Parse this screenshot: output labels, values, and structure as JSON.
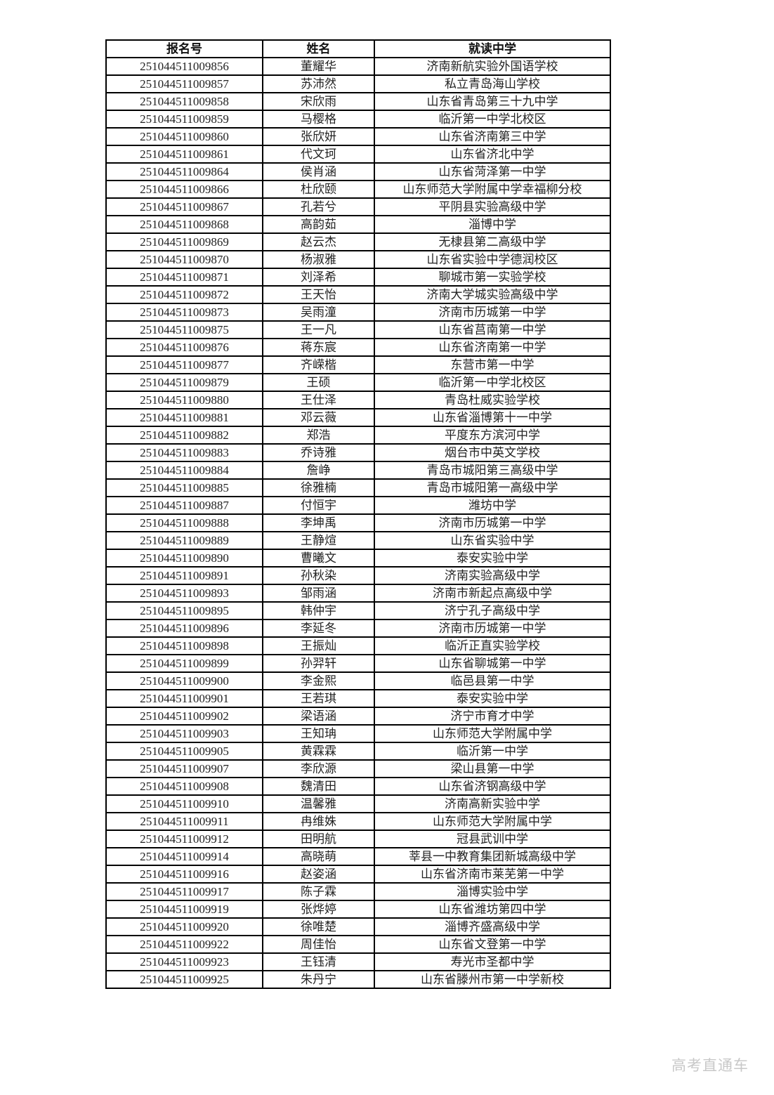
{
  "watermark": {
    "text": "高考直通车",
    "color": "#c8c8c8"
  },
  "table": {
    "columns": [
      "报名号",
      "姓名",
      "就读中学"
    ],
    "cell_names": [
      "reg-no-cell",
      "name-cell",
      "school-cell"
    ],
    "rows": [
      [
        "251044511009856",
        "董耀华",
        "济南新航实验外国语学校"
      ],
      [
        "251044511009857",
        "苏沛然",
        "私立青岛海山学校"
      ],
      [
        "251044511009858",
        "宋欣雨",
        "山东省青岛第三十九中学"
      ],
      [
        "251044511009859",
        "马樱格",
        "临沂第一中学北校区"
      ],
      [
        "251044511009860",
        "张欣妍",
        "山东省济南第三中学"
      ],
      [
        "251044511009861",
        "代文珂",
        "山东省济北中学"
      ],
      [
        "251044511009864",
        "侯肖涵",
        "山东省菏泽第一中学"
      ],
      [
        "251044511009866",
        "杜欣颐",
        "山东师范大学附属中学幸福柳分校"
      ],
      [
        "251044511009867",
        "孔若兮",
        "平阴县实验高级中学"
      ],
      [
        "251044511009868",
        "高韵茹",
        "淄博中学"
      ],
      [
        "251044511009869",
        "赵云杰",
        "无棣县第二高级中学"
      ],
      [
        "251044511009870",
        "杨淑雅",
        "山东省实验中学德润校区"
      ],
      [
        "251044511009871",
        "刘泽希",
        "聊城市第一实验学校"
      ],
      [
        "251044511009872",
        "王天怡",
        "济南大学城实验高级中学"
      ],
      [
        "251044511009873",
        "吴雨潼",
        "济南市历城第一中学"
      ],
      [
        "251044511009875",
        "王一凡",
        "山东省莒南第一中学"
      ],
      [
        "251044511009876",
        "蒋东宸",
        "山东省济南第一中学"
      ],
      [
        "251044511009877",
        "齐嵘楷",
        "东营市第一中学"
      ],
      [
        "251044511009879",
        "王硕",
        "临沂第一中学北校区"
      ],
      [
        "251044511009880",
        "王仕泽",
        "青岛杜威实验学校"
      ],
      [
        "251044511009881",
        "邓云薇",
        "山东省淄博第十一中学"
      ],
      [
        "251044511009882",
        "郑浩",
        "平度东方滨河中学"
      ],
      [
        "251044511009883",
        "乔诗雅",
        "烟台市中英文学校"
      ],
      [
        "251044511009884",
        "詹峥",
        "青岛市城阳第三高级中学"
      ],
      [
        "251044511009885",
        "徐雅楠",
        "青岛市城阳第一高级中学"
      ],
      [
        "251044511009887",
        "付恒宇",
        "潍坊中学"
      ],
      [
        "251044511009888",
        "李坤禹",
        "济南市历城第一中学"
      ],
      [
        "251044511009889",
        "王静煊",
        "山东省实验中学"
      ],
      [
        "251044511009890",
        "曹曦文",
        "泰安实验中学"
      ],
      [
        "251044511009891",
        "孙秋染",
        "济南实验高级中学"
      ],
      [
        "251044511009893",
        "邹雨涵",
        "济南市新起点高级中学"
      ],
      [
        "251044511009895",
        "韩仲宇",
        "济宁孔子高级中学"
      ],
      [
        "251044511009896",
        "李延冬",
        "济南市历城第一中学"
      ],
      [
        "251044511009898",
        "王振灿",
        "临沂正直实验学校"
      ],
      [
        "251044511009899",
        "孙羿轩",
        "山东省聊城第一中学"
      ],
      [
        "251044511009900",
        "李金熙",
        "临邑县第一中学"
      ],
      [
        "251044511009901",
        "王若琪",
        "泰安实验中学"
      ],
      [
        "251044511009902",
        "梁语涵",
        "济宁市育才中学"
      ],
      [
        "251044511009903",
        "王知珃",
        "山东师范大学附属中学"
      ],
      [
        "251044511009905",
        "黄霖霖",
        "临沂第一中学"
      ],
      [
        "251044511009907",
        "李欣源",
        "梁山县第一中学"
      ],
      [
        "251044511009908",
        "魏清田",
        "山东省济钢高级中学"
      ],
      [
        "251044511009910",
        "温馨雅",
        "济南高新实验中学"
      ],
      [
        "251044511009911",
        "冉维姝",
        "山东师范大学附属中学"
      ],
      [
        "251044511009912",
        "田明航",
        "冠县武训中学"
      ],
      [
        "251044511009914",
        "高晓萌",
        "莘县一中教育集团新城高级中学"
      ],
      [
        "251044511009916",
        "赵姿涵",
        "山东省济南市莱芜第一中学"
      ],
      [
        "251044511009917",
        "陈子霖",
        "淄博实验中学"
      ],
      [
        "251044511009919",
        "张烨婷",
        "山东省潍坊第四中学"
      ],
      [
        "251044511009920",
        "徐唯楚",
        "淄博齐盛高级中学"
      ],
      [
        "251044511009922",
        "周佳怡",
        "山东省文登第一中学"
      ],
      [
        "251044511009923",
        "王钰清",
        "寿光市圣都中学"
      ],
      [
        "251044511009925",
        "朱丹宁",
        "山东省滕州市第一中学新校"
      ]
    ]
  }
}
